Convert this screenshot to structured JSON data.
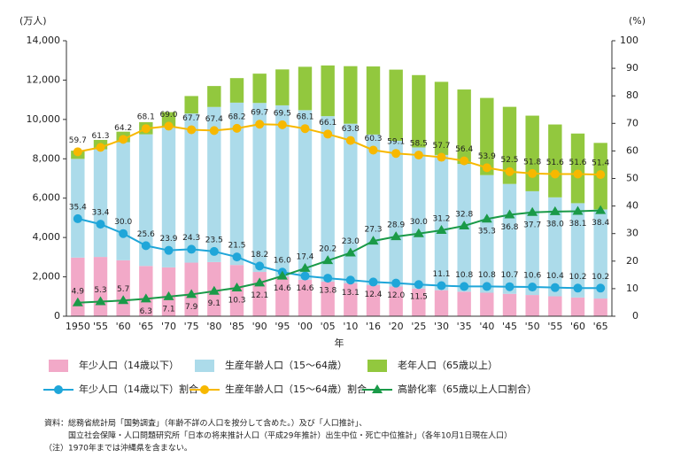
{
  "chart_data": {
    "type": "bar-line",
    "stacked": true,
    "y_label": "(万人)",
    "y2_label": "(%)",
    "x_label": "年",
    "categories": [
      "1950",
      "'55",
      "'60",
      "'65",
      "'70",
      "'75",
      "'80",
      "'85",
      "'90",
      "'95",
      "'00",
      "'05",
      "'10",
      "'16",
      "'20",
      "'25",
      "'30",
      "'35",
      "'40",
      "'45",
      "'50",
      "'55",
      "'60",
      "'65"
    ],
    "ylim": [
      0,
      14000
    ],
    "yticks": [
      0,
      {
        "value": 2000,
        "label": "2,000"
      },
      {
        "value": 4000,
        "label": "4,000"
      },
      {
        "value": 6000,
        "label": "6,000"
      },
      {
        "value": 8000,
        "label": "8,000"
      },
      {
        "value": 10000,
        "label": "10,000"
      },
      {
        "value": 12000,
        "label": "12,000"
      },
      {
        "value": 14000,
        "label": "14,000"
      }
    ],
    "y2lim": [
      0,
      100
    ],
    "y2ticks": [
      0,
      10,
      20,
      30,
      40,
      50,
      60,
      70,
      80,
      90,
      100
    ],
    "series": [
      {
        "name": "年少人口（14歳以下）",
        "type": "bar",
        "color": "#f2a9c8",
        "values": [
          2979,
          3012,
          2843,
          2553,
          2482,
          2722,
          2751,
          2603,
          2249,
          2001,
          1851,
          1759,
          1680,
          1578,
          1507,
          1407,
          1321,
          1246,
          1194,
          1138,
          1077,
          1012,
          951,
          898
        ]
      },
      {
        "name": "生産年齢人口（15～64歳）",
        "type": "bar",
        "color": "#acdbea",
        "values": [
          5017,
          5473,
          6000,
          6692,
          7157,
          7581,
          7883,
          8251,
          8590,
          8716,
          8622,
          8409,
          8103,
          7656,
          7406,
          7170,
          6875,
          6494,
          5978,
          5584,
          5275,
          5028,
          4793,
          4529
        ]
      },
      {
        "name": "老年人口（65歳以上）",
        "type": "bar",
        "color": "#92c83e",
        "values": [
          416,
          475,
          535,
          618,
          733,
          887,
          1065,
          1247,
          1489,
          1826,
          2204,
          2576,
          2925,
          3459,
          3619,
          3677,
          3716,
          3782,
          3921,
          3919,
          3841,
          3704,
          3540,
          3381
        ]
      },
      {
        "name": "年少人口（14歳以下）割合",
        "type": "line",
        "axis": "y2",
        "marker": "circle",
        "color": "#1fa6d9",
        "values": [
          35.4,
          33.4,
          30,
          25.6,
          23.9,
          24.3,
          23.5,
          21.5,
          18.2,
          16,
          14.6,
          13.8,
          13.1,
          12.4,
          12,
          11.5,
          11.1,
          10.8,
          10.8,
          10.7,
          10.6,
          10.4,
          10.2,
          10.2
        ],
        "value_labels": [
          "35.4",
          "33.4",
          "30.0",
          "25.6",
          "23.9",
          "24.3",
          "23.5",
          "21.5",
          "18.2",
          "16.0",
          "14.6",
          "13.8",
          "13.1",
          "12.4",
          "12.0",
          "11.5",
          "11.1",
          "10.8",
          "10.8",
          "10.7",
          "10.6",
          "10.4",
          "10.2",
          "10.2"
        ]
      },
      {
        "name": "生産年齢人口（15～64歳）割合",
        "type": "line",
        "axis": "y2",
        "marker": "circle",
        "color": "#f7b800",
        "values": [
          59.7,
          61.3,
          64.2,
          68.1,
          69,
          67.7,
          67.4,
          68.2,
          69.7,
          69.5,
          68.1,
          66.1,
          63.8,
          60.3,
          59.1,
          58.5,
          57.7,
          56.4,
          53.9,
          52.5,
          51.8,
          51.6,
          51.6,
          51.4
        ],
        "value_labels": [
          "59.7",
          "61.3",
          "64.2",
          "68.1",
          "69.0",
          "67.7",
          "67.4",
          "68.2",
          "69.7",
          "69.5",
          "68.1",
          "66.1",
          "63.8",
          "60.3",
          "59.1",
          "58.5",
          "57.7",
          "56.4",
          "53.9",
          "52.5",
          "51.8",
          "51.6",
          "51.6",
          "51.4"
        ]
      },
      {
        "name": "高齢化率（65歳以上人口割合）",
        "type": "line",
        "axis": "y2",
        "marker": "triangle",
        "color": "#1a9a48",
        "values": [
          4.9,
          5.3,
          5.7,
          6.3,
          7.1,
          7.9,
          9.1,
          10.3,
          12.1,
          14.6,
          17.4,
          20.2,
          23,
          27.3,
          28.9,
          30,
          31.2,
          32.8,
          35.3,
          36.8,
          37.7,
          38,
          38.1,
          38.4
        ],
        "value_labels": [
          "4.9",
          "5.3",
          "5.7",
          "6.3",
          "7.1",
          "7.9",
          "9.1",
          "10.3",
          "12.1",
          "14.6",
          "17.4",
          "20.2",
          "23.0",
          "27.3",
          "28.9",
          "30.0",
          "31.2",
          "32.8",
          "35.3",
          "36.8",
          "37.7",
          "38.0",
          "38.1",
          "38.4"
        ]
      }
    ],
    "notes": [
      "資料：総務省統計局「国勢調査」（年齢不詳の人口を按分して含めた。）及び「人口推計」、",
      "　　　国立社会保障・人口問題研究所「日本の将来推計人口（平成29年推計）出生中位・死亡中位推計」（各年10月1日現在人口）",
      "（注）1970年までは沖縄県を含まない。"
    ]
  }
}
